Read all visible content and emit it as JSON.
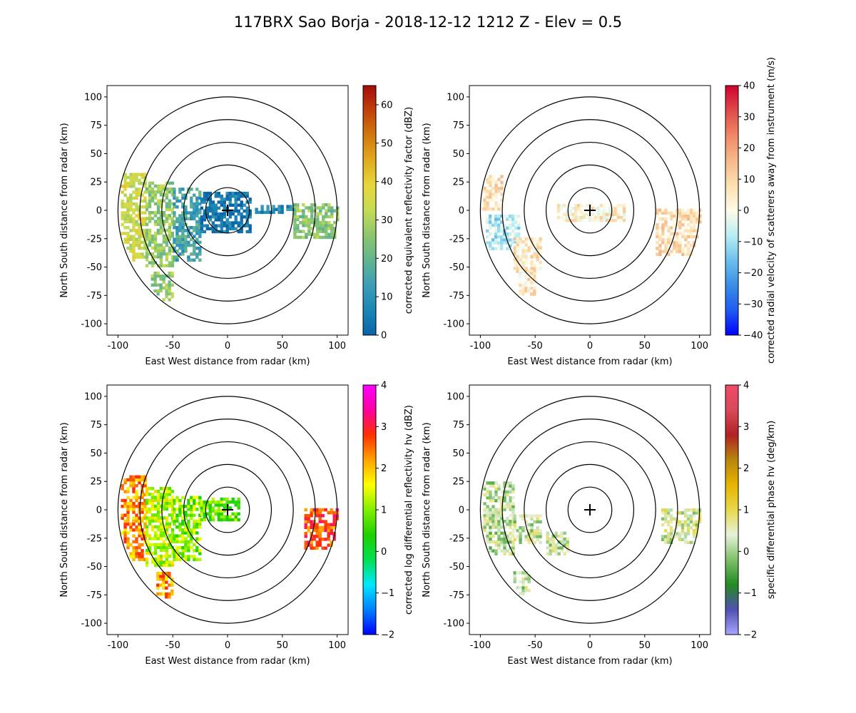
{
  "figure": {
    "title": "117BRX Sao Borja - 2018-12-12 1212 Z -  Elev = 0.5"
  },
  "chart_data": [
    {
      "type": "heatmap",
      "panel": "top-left",
      "field": "reflectivity",
      "xlabel": "East West distance from radar (km)",
      "ylabel": "North South distance from radar (km)",
      "xlim": [
        -110,
        110
      ],
      "ylim": [
        -110,
        110
      ],
      "x_ticks": [
        -100,
        -50,
        0,
        50,
        100
      ],
      "y_ticks": [
        -100,
        -75,
        -50,
        -25,
        0,
        25,
        50,
        75,
        100
      ],
      "range_rings_km": [
        20,
        40,
        60,
        80,
        100
      ],
      "colorbar": {
        "label": "corrected equivalent reflectivity factor (dBZ)",
        "min": 0,
        "max": 65,
        "ticks": [
          0,
          10,
          20,
          30,
          40,
          50,
          60
        ],
        "colors": [
          "#0a64a8",
          "#1b86b4",
          "#3c9db8",
          "#62b48f",
          "#8cc66e",
          "#c4dc55",
          "#e8d63c",
          "#e2aa1e",
          "#d07a10",
          "#c0420a",
          "#a50a0a"
        ]
      },
      "echo_regions": [
        {
          "x": [
            -100,
            -75
          ],
          "y": [
            -45,
            32
          ],
          "value": 35
        },
        {
          "x": [
            -75,
            -50
          ],
          "y": [
            -50,
            25
          ],
          "value": 27
        },
        {
          "x": [
            -50,
            -25
          ],
          "y": [
            -45,
            20
          ],
          "value": 15
        },
        {
          "x": [
            -25,
            20
          ],
          "y": [
            -20,
            15
          ],
          "value": 4
        },
        {
          "x": [
            -70,
            -50
          ],
          "y": [
            -80,
            -55
          ],
          "value": 27
        },
        {
          "x": [
            60,
            100
          ],
          "y": [
            -25,
            5
          ],
          "value": 25
        },
        {
          "x": [
            25,
            60
          ],
          "y": [
            -3,
            3
          ],
          "value": 8
        }
      ]
    },
    {
      "type": "heatmap",
      "panel": "top-right",
      "field": "velocity",
      "xlabel": "East West distance from radar (km)",
      "ylabel": "North South distance from radar (km)",
      "xlim": [
        -110,
        110
      ],
      "ylim": [
        -110,
        110
      ],
      "x_ticks": [
        -100,
        -50,
        0,
        50,
        100
      ],
      "y_ticks": [
        -100,
        -75,
        -50,
        -25,
        0,
        25,
        50,
        75,
        100
      ],
      "range_rings_km": [
        20,
        40,
        60,
        80,
        100
      ],
      "colorbar": {
        "label": "corrected radial velocity of scatterers away from instrument (m/s)",
        "min": -40,
        "max": 40,
        "ticks": [
          -40,
          -30,
          -20,
          -10,
          0,
          10,
          20,
          30,
          40
        ],
        "colors": [
          "#0000ff",
          "#1f5cf0",
          "#3a8ee6",
          "#6cc0ec",
          "#b8eef5",
          "#fffbe6",
          "#fbe0b0",
          "#f7b98a",
          "#f08866",
          "#e04a4a",
          "#d00030"
        ]
      },
      "echo_regions": [
        {
          "x": [
            -100,
            -80
          ],
          "y": [
            0,
            30
          ],
          "value": 7
        },
        {
          "x": [
            -95,
            -65
          ],
          "y": [
            -35,
            -5
          ],
          "value": -8
        },
        {
          "x": [
            -70,
            -45
          ],
          "y": [
            -55,
            -25
          ],
          "value": 6
        },
        {
          "x": [
            -65,
            -50
          ],
          "y": [
            -75,
            -55
          ],
          "value": 5
        },
        {
          "x": [
            -30,
            30
          ],
          "y": [
            -10,
            5
          ],
          "value": 4
        },
        {
          "x": [
            60,
            100
          ],
          "y": [
            -40,
            0
          ],
          "value": 8
        }
      ]
    },
    {
      "type": "heatmap",
      "panel": "bottom-left",
      "field": "differential_reflectivity",
      "xlabel": "East West distance from radar (km)",
      "ylabel": "North South distance from radar (km)",
      "xlim": [
        -110,
        110
      ],
      "ylim": [
        -110,
        110
      ],
      "x_ticks": [
        -100,
        -50,
        0,
        50,
        100
      ],
      "y_ticks": [
        -100,
        -75,
        -50,
        -25,
        0,
        25,
        50,
        75,
        100
      ],
      "range_rings_km": [
        20,
        40,
        60,
        80,
        100
      ],
      "colorbar": {
        "label": "corrected log differential reflectivity hv (dBZ)",
        "min": -2,
        "max": 4,
        "ticks": [
          -2,
          -1,
          0,
          1,
          2,
          3,
          4
        ],
        "colors": [
          "#0000ff",
          "#0080ff",
          "#00e8ff",
          "#00e050",
          "#20d000",
          "#80f000",
          "#ffff00",
          "#ffa500",
          "#ff3000",
          "#ff00a0",
          "#ff00ff"
        ]
      },
      "echo_regions": [
        {
          "x": [
            -100,
            -75
          ],
          "y": [
            -45,
            30
          ],
          "value": 2.3
        },
        {
          "x": [
            -75,
            -50
          ],
          "y": [
            -50,
            20
          ],
          "value": 1.3
        },
        {
          "x": [
            -50,
            -25
          ],
          "y": [
            -45,
            10
          ],
          "value": 1.0
        },
        {
          "x": [
            -65,
            -50
          ],
          "y": [
            -78,
            -55
          ],
          "value": 2.3
        },
        {
          "x": [
            -25,
            10
          ],
          "y": [
            -10,
            10
          ],
          "value": 0.8
        },
        {
          "x": [
            70,
            100
          ],
          "y": [
            -35,
            0
          ],
          "value": 2.7
        }
      ]
    },
    {
      "type": "heatmap",
      "panel": "bottom-right",
      "field": "specific_differential_phase",
      "xlabel": "East West distance from radar (km)",
      "ylabel": "North South distance from radar (km)",
      "xlim": [
        -110,
        110
      ],
      "ylim": [
        -110,
        110
      ],
      "x_ticks": [
        -100,
        -50,
        0,
        50,
        100
      ],
      "y_ticks": [
        -100,
        -75,
        -50,
        -25,
        0,
        25,
        50,
        75,
        100
      ],
      "range_rings_km": [
        20,
        40,
        60,
        80,
        100
      ],
      "colorbar": {
        "label": "specific differential phase hv (deg/km)",
        "min": -2,
        "max": 4,
        "ticks": [
          -2,
          -1,
          0,
          1,
          2,
          3,
          4
        ],
        "colors": [
          "#a6a6ff",
          "#5050b0",
          "#228b22",
          "#7ec06a",
          "#e6f2da",
          "#e6d84a",
          "#e6b400",
          "#b8860b",
          "#b22222",
          "#d84a5a",
          "#f04a6a"
        ]
      },
      "echo_regions": [
        {
          "x": [
            -100,
            -70
          ],
          "y": [
            -40,
            25
          ],
          "value": 0.2
        },
        {
          "x": [
            -70,
            -45
          ],
          "y": [
            -30,
            -5
          ],
          "value": 0.3
        },
        {
          "x": [
            -40,
            -20
          ],
          "y": [
            -40,
            -20
          ],
          "value": 0.3
        },
        {
          "x": [
            -70,
            -55
          ],
          "y": [
            -75,
            -55
          ],
          "value": 0.2
        },
        {
          "x": [
            65,
            100
          ],
          "y": [
            -30,
            0
          ],
          "value": 0.4
        }
      ]
    }
  ]
}
